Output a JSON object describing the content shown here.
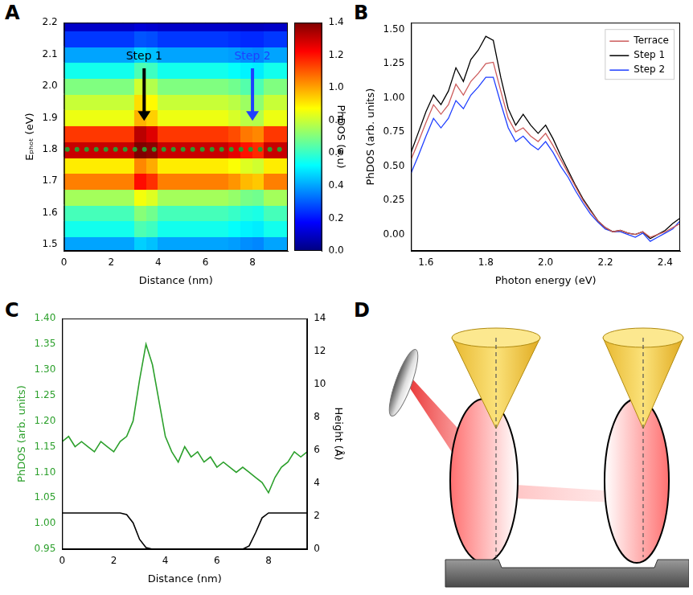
{
  "chart_data": [
    {
      "panel": "A",
      "type": "heatmap",
      "x_label": "Distance (nm)",
      "y_label": "Eₚₕₒₜ (eV)",
      "x": [
        0.25,
        0.75,
        1.25,
        1.75,
        2.25,
        2.75,
        3.25,
        3.75,
        4.25,
        4.75,
        5.25,
        5.75,
        6.25,
        6.75,
        7.25,
        7.75,
        8.25,
        8.75,
        9.25
      ],
      "y": [
        1.5,
        1.55,
        1.6,
        1.65,
        1.7,
        1.75,
        1.8,
        1.85,
        1.9,
        1.95,
        2.0,
        2.05,
        2.1,
        2.15,
        2.2
      ],
      "cells": [
        [
          0.4,
          0.4,
          0.4,
          0.4,
          0.4,
          0.4,
          0.46,
          0.44,
          0.4,
          0.4,
          0.4,
          0.4,
          0.4,
          0.4,
          0.39,
          0.37,
          0.36,
          0.4,
          0.4
        ],
        [
          0.55,
          0.55,
          0.55,
          0.55,
          0.55,
          0.55,
          0.63,
          0.61,
          0.55,
          0.55,
          0.55,
          0.55,
          0.55,
          0.55,
          0.53,
          0.51,
          0.5,
          0.55,
          0.55
        ],
        [
          0.62,
          0.62,
          0.62,
          0.62,
          0.62,
          0.62,
          0.71,
          0.68,
          0.62,
          0.62,
          0.62,
          0.62,
          0.62,
          0.62,
          0.6,
          0.57,
          0.56,
          0.62,
          0.62
        ],
        [
          0.75,
          0.75,
          0.75,
          0.75,
          0.75,
          0.75,
          0.86,
          0.83,
          0.75,
          0.75,
          0.75,
          0.75,
          0.75,
          0.75,
          0.73,
          0.69,
          0.68,
          0.75,
          0.75
        ],
        [
          1.05,
          1.05,
          1.05,
          1.05,
          1.05,
          1.05,
          1.21,
          1.16,
          1.05,
          1.05,
          1.05,
          1.05,
          1.05,
          1.05,
          1.02,
          0.97,
          0.95,
          1.05,
          1.05
        ],
        [
          0.9,
          0.9,
          0.9,
          0.9,
          0.9,
          0.9,
          1.04,
          0.99,
          0.9,
          0.9,
          0.9,
          0.9,
          0.9,
          0.9,
          0.87,
          0.83,
          0.81,
          0.9,
          0.9
        ],
        [
          1.3,
          1.3,
          1.3,
          1.3,
          1.3,
          1.3,
          1.4,
          1.38,
          1.3,
          1.3,
          1.3,
          1.3,
          1.3,
          1.3,
          1.26,
          1.2,
          1.17,
          1.3,
          1.3
        ],
        [
          1.15,
          1.15,
          1.15,
          1.15,
          1.15,
          1.15,
          1.32,
          1.27,
          1.15,
          1.15,
          1.15,
          1.15,
          1.15,
          1.15,
          1.12,
          1.06,
          1.04,
          1.15,
          1.15
        ],
        [
          0.85,
          0.85,
          0.85,
          0.85,
          0.85,
          0.85,
          0.98,
          0.94,
          0.85,
          0.85,
          0.85,
          0.85,
          0.85,
          0.85,
          0.82,
          0.78,
          0.77,
          0.85,
          0.85
        ],
        [
          0.8,
          0.8,
          0.8,
          0.8,
          0.8,
          0.8,
          0.92,
          0.88,
          0.8,
          0.8,
          0.8,
          0.8,
          0.8,
          0.8,
          0.78,
          0.74,
          0.72,
          0.8,
          0.8
        ],
        [
          0.7,
          0.7,
          0.7,
          0.7,
          0.7,
          0.7,
          0.81,
          0.77,
          0.7,
          0.7,
          0.7,
          0.7,
          0.7,
          0.7,
          0.68,
          0.64,
          0.63,
          0.7,
          0.7
        ],
        [
          0.55,
          0.55,
          0.55,
          0.55,
          0.55,
          0.55,
          0.63,
          0.61,
          0.55,
          0.55,
          0.55,
          0.55,
          0.55,
          0.55,
          0.53,
          0.51,
          0.5,
          0.55,
          0.55
        ],
        [
          0.4,
          0.4,
          0.4,
          0.4,
          0.4,
          0.4,
          0.46,
          0.44,
          0.4,
          0.4,
          0.4,
          0.4,
          0.4,
          0.4,
          0.39,
          0.37,
          0.36,
          0.4,
          0.4
        ],
        [
          0.25,
          0.25,
          0.25,
          0.25,
          0.25,
          0.25,
          0.29,
          0.28,
          0.25,
          0.25,
          0.25,
          0.25,
          0.25,
          0.25,
          0.24,
          0.23,
          0.23,
          0.25,
          0.25
        ],
        [
          0.1,
          0.1,
          0.1,
          0.1,
          0.1,
          0.1,
          0.12,
          0.11,
          0.1,
          0.1,
          0.1,
          0.1,
          0.1,
          0.1,
          0.1,
          0.09,
          0.09,
          0.1,
          0.1
        ]
      ],
      "xlim": [
        0,
        9.5
      ],
      "xticks": [
        0,
        2,
        4,
        6,
        8
      ],
      "ylim": [
        1.48,
        2.2
      ],
      "yticks": [
        1.5,
        1.6,
        1.7,
        1.8,
        1.9,
        {
          "value": 2.0,
          "label": "2.0"
        },
        2.1,
        2.2
      ],
      "colorbar": {
        "label": "PhDOS (a.u)",
        "range": [
          0,
          1.4
        ],
        "ticks": [
          {
            "value": 0,
            "label": "0.0"
          },
          0.2,
          0.4,
          0.6,
          0.8,
          {
            "value": 1.0,
            "label": "1.0"
          },
          1.2,
          1.4
        ]
      },
      "annotations": [
        {
          "text": "Step 1",
          "x": 3.4,
          "color": "#000000"
        },
        {
          "text": "Step 2",
          "x": 8.0,
          "color": "#1f3fff"
        }
      ],
      "guide_line": {
        "y": 1.8,
        "color": "#2e9a2e",
        "marker": "dot"
      }
    },
    {
      "panel": "B",
      "type": "line",
      "x_label": "Photon energy (eV)",
      "y_label": "PhDOS (arb. units)",
      "x": [
        1.55,
        1.575,
        1.6,
        1.625,
        1.65,
        1.675,
        1.7,
        1.725,
        1.75,
        1.775,
        1.8,
        1.825,
        1.85,
        1.875,
        1.9,
        1.925,
        1.95,
        1.975,
        2.0,
        2.025,
        2.05,
        2.075,
        2.1,
        2.125,
        2.15,
        2.175,
        2.2,
        2.225,
        2.25,
        2.275,
        2.3,
        2.325,
        2.35,
        2.375,
        2.4,
        2.425,
        2.45
      ],
      "series": [
        {
          "name": "Terrace",
          "color": "#cd5c5c",
          "values": [
            0.55,
            0.68,
            0.82,
            0.95,
            0.88,
            0.95,
            1.1,
            1.02,
            1.12,
            1.18,
            1.25,
            1.26,
            1.05,
            0.85,
            0.75,
            0.78,
            0.72,
            0.68,
            0.74,
            0.65,
            0.55,
            0.45,
            0.35,
            0.25,
            0.17,
            0.1,
            0.05,
            0.02,
            0.03,
            0.01,
            0.0,
            0.02,
            -0.02,
            0.0,
            0.02,
            0.05,
            0.08
          ]
        },
        {
          "name": "Step 1",
          "color": "#000000",
          "values": [
            0.6,
            0.75,
            0.9,
            1.02,
            0.95,
            1.05,
            1.22,
            1.12,
            1.28,
            1.35,
            1.45,
            1.42,
            1.15,
            0.92,
            0.8,
            0.88,
            0.8,
            0.74,
            0.8,
            0.7,
            0.58,
            0.47,
            0.36,
            0.26,
            0.18,
            0.1,
            0.05,
            0.02,
            0.03,
            0.01,
            0.0,
            0.02,
            -0.03,
            0.0,
            0.03,
            0.08,
            0.12
          ]
        },
        {
          "name": "Step 2",
          "color": "#1f3fff",
          "values": [
            0.45,
            0.58,
            0.72,
            0.85,
            0.78,
            0.85,
            0.98,
            0.92,
            1.02,
            1.08,
            1.15,
            1.15,
            0.96,
            0.78,
            0.68,
            0.72,
            0.66,
            0.62,
            0.68,
            0.6,
            0.5,
            0.42,
            0.32,
            0.23,
            0.15,
            0.09,
            0.04,
            0.02,
            0.02,
            0.0,
            -0.02,
            0.01,
            -0.05,
            -0.02,
            0.01,
            0.04,
            0.1
          ]
        }
      ],
      "xlim": [
        1.55,
        2.45
      ],
      "xticks": [
        1.6,
        1.8,
        {
          "value": 2.0,
          "label": "2.0"
        },
        2.2,
        2.4
      ],
      "ylim": [
        -0.12,
        1.55
      ],
      "yticks": [
        {
          "value": 0,
          "label": "0.00"
        },
        0.25,
        {
          "value": 0.5,
          "label": "0.50"
        },
        0.75,
        {
          "value": 1.0,
          "label": "1.00"
        },
        1.25,
        {
          "value": 1.5,
          "label": "1.50"
        }
      ],
      "legend": "upper right"
    },
    {
      "panel": "C",
      "type": "line",
      "x_label": "Distance (nm)",
      "y_label": "PhDOS (arb. units)",
      "y2_label": "Height (Å)",
      "x": [
        0,
        0.25,
        0.5,
        0.75,
        1,
        1.25,
        1.5,
        1.75,
        2,
        2.25,
        2.5,
        2.75,
        3,
        3.25,
        3.5,
        3.75,
        4,
        4.25,
        4.5,
        4.75,
        5,
        5.25,
        5.5,
        5.75,
        6,
        6.25,
        6.5,
        6.75,
        7,
        7.25,
        7.5,
        7.75,
        8,
        8.25,
        8.5,
        8.75,
        9,
        9.25,
        9.5
      ],
      "series": [
        {
          "color": "#2ca02c",
          "values": [
            1.16,
            1.17,
            1.15,
            1.16,
            1.15,
            1.14,
            1.16,
            1.15,
            1.14,
            1.16,
            1.17,
            1.2,
            1.28,
            1.35,
            1.31,
            1.24,
            1.17,
            1.14,
            1.12,
            1.15,
            1.13,
            1.14,
            1.12,
            1.13,
            1.11,
            1.12,
            1.11,
            1.1,
            1.11,
            1.1,
            1.09,
            1.08,
            1.06,
            1.09,
            1.11,
            1.12,
            1.14,
            1.13,
            1.14
          ]
        },
        {
          "color": "#000000",
          "axis": "y2",
          "values": [
            2.2,
            2.2,
            2.2,
            2.2,
            2.2,
            2.2,
            2.2,
            2.2,
            2.2,
            2.2,
            2.1,
            1.6,
            0.6,
            0.1,
            0,
            0,
            0,
            0,
            0,
            0,
            0,
            0,
            0,
            0,
            0,
            0,
            0,
            0,
            0,
            0.2,
            1.0,
            1.9,
            2.2,
            2.2,
            2.2,
            2.2,
            2.2,
            2.2,
            2.2
          ]
        }
      ],
      "xlim": [
        0,
        9.5
      ],
      "xticks": [
        0,
        2,
        4,
        6,
        8
      ],
      "ylim": [
        0.95,
        1.4
      ],
      "yticks": [
        0.95,
        {
          "value": 1.0,
          "label": "1.00"
        },
        1.05,
        {
          "value": 1.1,
          "label": "1.10"
        },
        1.15,
        {
          "value": 1.2,
          "label": "1.20"
        },
        1.25,
        {
          "value": 1.3,
          "label": "1.30"
        },
        1.35,
        {
          "value": 1.4,
          "label": "1.40"
        }
      ],
      "y2lim": [
        0,
        14
      ],
      "y2ticks": [
        0,
        2,
        4,
        6,
        8,
        10,
        12,
        14
      ]
    }
  ],
  "diagram": {
    "panel": "D"
  }
}
